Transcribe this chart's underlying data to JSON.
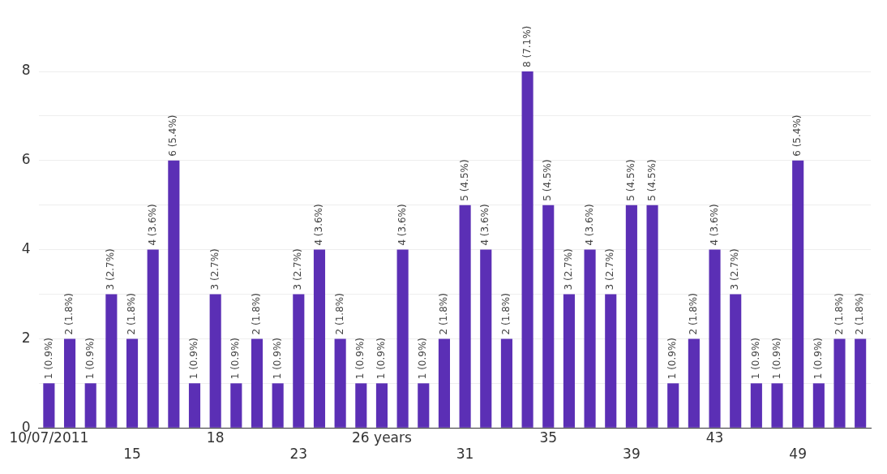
{
  "chart_data": {
    "type": "bar",
    "categories": [
      "10/07/2011",
      null,
      null,
      null,
      "15",
      null,
      null,
      null,
      "18",
      null,
      null,
      null,
      "23",
      null,
      null,
      null,
      "26 years",
      null,
      null,
      null,
      "31",
      null,
      null,
      null,
      "35",
      null,
      null,
      null,
      "39",
      null,
      null,
      null,
      "43",
      null,
      null,
      null,
      "49",
      null,
      null,
      null
    ],
    "values": [
      1,
      2,
      1,
      3,
      2,
      4,
      6,
      1,
      3,
      1,
      2,
      1,
      3,
      4,
      2,
      1,
      1,
      4,
      1,
      2,
      5,
      4,
      2,
      8,
      5,
      3,
      4,
      3,
      5,
      5,
      1,
      2,
      4,
      3,
      1,
      1,
      6,
      1,
      2,
      2
    ],
    "value_labels": [
      "1 (0.9%)",
      "2 (1.8%)",
      "1 (0.9%)",
      "3 (2.7%)",
      "2 (1.8%)",
      "4 (3.6%)",
      "6 (5.4%)",
      "1 (0.9%)",
      "3 (2.7%)",
      "1 (0.9%)",
      "2 (1.8%)",
      "1 (0.9%)",
      "3 (2.7%)",
      "4 (3.6%)",
      "2 (1.8%)",
      "1 (0.9%)",
      "1 (0.9%)",
      "4 (3.6%)",
      "1 (0.9%)",
      "2 (1.8%)",
      "5 (4.5%)",
      "4 (3.6%)",
      "2 (1.8%)",
      "8 (7.1%)",
      "5 (4.5%)",
      "3 (2.7%)",
      "4 (3.6%)",
      "3 (2.7%)",
      "5 (4.5%)",
      "5 (4.5%)",
      "1 (0.9%)",
      "2 (1.8%)",
      "4 (3.6%)",
      "3 (2.7%)",
      "1 (0.9%)",
      "1 (0.9%)",
      "6 (5.4%)",
      "1 (0.9%)",
      "2 (1.8%)",
      "2 (1.8%)"
    ],
    "color": "#5b2fb5",
    "ylim": [
      0,
      8
    ],
    "yticks": [
      0,
      {
        "value": 1,
        "label": null
      },
      2,
      {
        "value": 3,
        "label": null
      },
      4,
      {
        "value": 5,
        "label": null
      },
      6,
      {
        "value": 7,
        "label": null
      },
      8
    ],
    "grid": "y",
    "legend": false
  }
}
